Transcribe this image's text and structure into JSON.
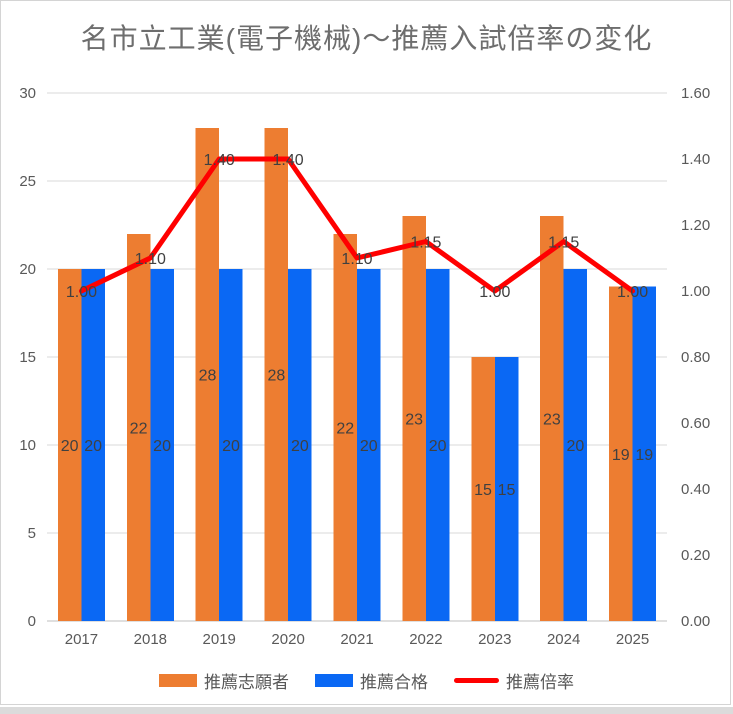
{
  "title": "名市立工業(電子機械)〜推薦入試倍率の変化",
  "colors": {
    "applicants": "#ED7D31",
    "accepted": "#0A68F4",
    "ratio": "#FF0000",
    "gridline": "#D9D9D9",
    "axis_line": "#BFBFBF",
    "axis_text": "#595959",
    "data_label": "#404040",
    "title_text": "#6E6E6E"
  },
  "chart_data": {
    "type": "bar",
    "subtype": "grouped bars with overlaid line on secondary axis",
    "title": "名市立工業(電子機械)〜推薦入試倍率の変化",
    "categories": [
      "2017",
      "2018",
      "2019",
      "2020",
      "2021",
      "2022",
      "2023",
      "2024",
      "2025"
    ],
    "series": [
      {
        "key": "applicants",
        "name": "推薦志願者",
        "type": "bar",
        "axis": "left",
        "color": "#ED7D31",
        "values": [
          20,
          22,
          28,
          28,
          22,
          23,
          15,
          23,
          19
        ],
        "labels": [
          "20",
          "22",
          "28",
          "28",
          "22",
          "23",
          "15",
          "23",
          "19"
        ]
      },
      {
        "key": "accepted",
        "name": "推薦合格",
        "type": "bar",
        "axis": "left",
        "color": "#0A68F4",
        "values": [
          20,
          20,
          20,
          20,
          20,
          20,
          15,
          20,
          19
        ],
        "labels": [
          "20",
          "20",
          "20",
          "20",
          "20",
          "20",
          "15",
          "20",
          "19"
        ]
      },
      {
        "key": "ratio",
        "name": "推薦倍率",
        "type": "line",
        "axis": "right",
        "color": "#FF0000",
        "values": [
          1.0,
          1.1,
          1.4,
          1.4,
          1.1,
          1.15,
          1.0,
          1.15,
          1.0
        ],
        "labels": [
          "1.00",
          "1.10",
          "1.40",
          "1.40",
          "1.10",
          "1.15",
          "1.00",
          "1.15",
          "1.00"
        ]
      }
    ],
    "left_axis": {
      "min": 0,
      "max": 30,
      "step": 5,
      "ticks": [
        "0",
        "5",
        "10",
        "15",
        "20",
        "25",
        "30"
      ]
    },
    "right_axis": {
      "min": 0,
      "max": 1.6,
      "step": 0.2,
      "ticks": [
        "0.00",
        "0.20",
        "0.40",
        "0.60",
        "0.80",
        "1.00",
        "1.20",
        "1.40",
        "1.60"
      ]
    },
    "grid": "horizontal only",
    "legend_position": "bottom",
    "xlabel": "",
    "ylabel": ""
  },
  "legend": {
    "items": [
      {
        "key": "applicants",
        "label": "推薦志願者"
      },
      {
        "key": "accepted",
        "label": "推薦合格"
      },
      {
        "key": "ratio",
        "label": "推薦倍率"
      }
    ]
  }
}
